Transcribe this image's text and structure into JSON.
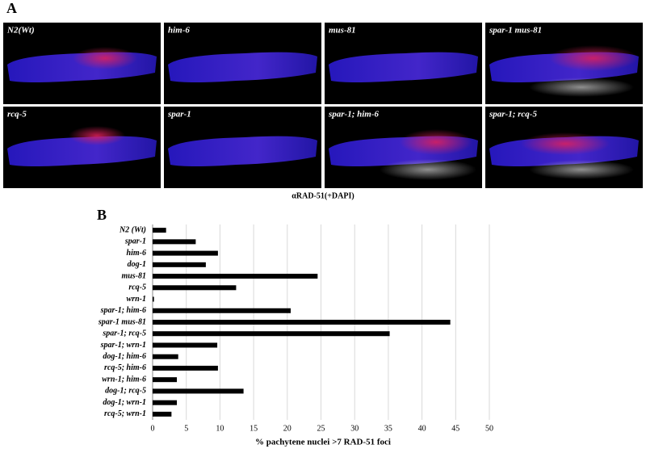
{
  "panel_a": {
    "label": "A",
    "images": [
      "N2(Wt)",
      "him-6",
      "mus-81",
      "spar-1 mus-81",
      "rcq-5",
      "spar-1",
      "spar-1; him-6",
      "spar-1; rcq-5"
    ],
    "caption": "αRAD-51(+DAPI)"
  },
  "panel_b_label": "B",
  "chart_data": {
    "type": "hbar",
    "xlabel": "% pachytene nuclei >7 RAD-51 foci",
    "categories": [
      "N2 (Wt)",
      "spar-1",
      "him-6",
      "dog-1",
      "mus-81",
      "rcq-5",
      "wrn-1",
      "spar-1; him-6",
      "spar-1 mus-81",
      "spar-1; rcq-5",
      "spar-1; wrn-1",
      "dog-1; him-6",
      "rcq-5; him-6",
      "wrn-1; him-6",
      "dog-1; rcq-5",
      "dog-1; wrn-1",
      "rcq-5; wrn-1"
    ],
    "values": [
      2,
      6.4,
      9.7,
      7.9,
      24.5,
      12.4,
      0.2,
      20.5,
      44.2,
      35.2,
      9.6,
      3.8,
      9.7,
      3.6,
      13.5,
      3.6,
      2.8
    ],
    "color": "#000000",
    "xlim": [
      0,
      50
    ],
    "xticks": [
      0,
      5,
      10,
      15,
      20,
      25,
      30,
      35,
      40,
      45,
      50
    ],
    "grid": true
  }
}
